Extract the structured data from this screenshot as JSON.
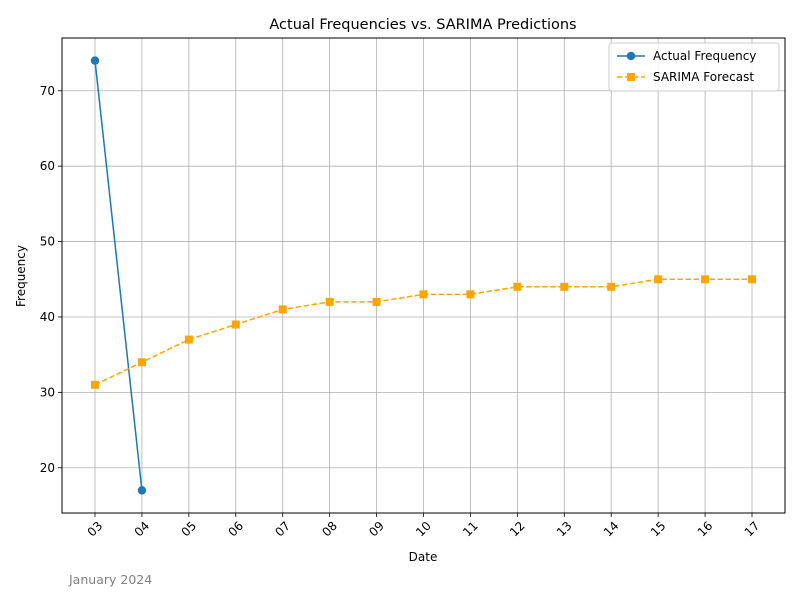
{
  "chart_data": {
    "type": "line",
    "title": "Actual Frequencies vs. SARIMA Predictions",
    "xlabel": "Date",
    "ylabel": "Frequency",
    "footnote": "January 2024",
    "categories": [
      "03",
      "04",
      "05",
      "06",
      "07",
      "08",
      "09",
      "10",
      "11",
      "12",
      "13",
      "14",
      "15",
      "16",
      "17"
    ],
    "ylim": [
      14,
      77
    ],
    "yticks": [
      20,
      30,
      40,
      50,
      60,
      70
    ],
    "grid": true,
    "legend_position": "top-right",
    "series": [
      {
        "name": "Actual Frequency",
        "color": "#1f77b4",
        "marker": "circle",
        "line_style": "solid",
        "values": [
          74,
          17,
          null,
          null,
          null,
          null,
          null,
          null,
          null,
          null,
          null,
          null,
          null,
          null,
          null
        ]
      },
      {
        "name": "SARIMA Forecast",
        "color": "#ffa500",
        "marker": "square",
        "line_style": "dashed",
        "values": [
          31,
          34,
          37,
          39,
          41,
          42,
          42,
          43,
          43,
          44,
          44,
          44,
          45,
          45,
          45
        ]
      }
    ]
  }
}
